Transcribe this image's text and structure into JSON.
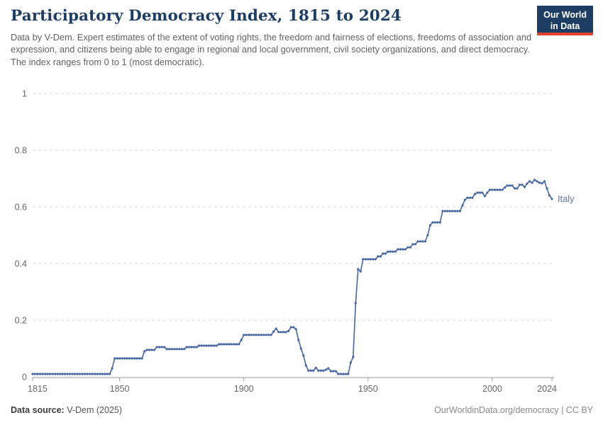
{
  "header": {
    "title": "Participatory Democracy Index, 1815 to 2024",
    "subtitle": "Data by V-Dem. Expert estimates of the extent of voting rights, the freedom and fairness of elections, freedoms of association and expression, and citizens being able to engage in regional and local government, civil society organizations, and direct democracy. The index ranges from 0 to 1 (most democratic)."
  },
  "logo": {
    "line1": "Our World",
    "line2": "in Data",
    "bg_color": "#1d3d63",
    "accent_color": "#e0432e"
  },
  "chart_data": {
    "type": "line",
    "title": "Participatory Democracy Index, 1815 to 2024",
    "xlabel": "",
    "ylabel": "",
    "xlim": [
      1815,
      2024
    ],
    "ylim": [
      0,
      1
    ],
    "x_ticks": [
      1815,
      1850,
      1900,
      1950,
      2000,
      2024
    ],
    "y_ticks": [
      0,
      0.2,
      0.4,
      0.6,
      0.8,
      1
    ],
    "grid": "dashed-horizontal",
    "legend_position": "end-of-line-label",
    "series": [
      {
        "name": "Italy",
        "color": "#4666a2",
        "label_color": "#5d7394",
        "start_year": 1815,
        "values": [
          0.01,
          0.01,
          0.01,
          0.01,
          0.01,
          0.01,
          0.01,
          0.01,
          0.01,
          0.01,
          0.01,
          0.01,
          0.01,
          0.01,
          0.01,
          0.01,
          0.01,
          0.01,
          0.01,
          0.01,
          0.01,
          0.01,
          0.01,
          0.01,
          0.01,
          0.01,
          0.01,
          0.01,
          0.01,
          0.01,
          0.01,
          0.01,
          0.03,
          0.065,
          0.065,
          0.065,
          0.065,
          0.065,
          0.065,
          0.065,
          0.065,
          0.065,
          0.065,
          0.065,
          0.065,
          0.09,
          0.095,
          0.095,
          0.095,
          0.095,
          0.105,
          0.105,
          0.105,
          0.105,
          0.098,
          0.098,
          0.098,
          0.098,
          0.098,
          0.098,
          0.098,
          0.098,
          0.105,
          0.105,
          0.105,
          0.105,
          0.105,
          0.11,
          0.11,
          0.11,
          0.11,
          0.11,
          0.11,
          0.11,
          0.11,
          0.115,
          0.115,
          0.115,
          0.115,
          0.115,
          0.115,
          0.115,
          0.115,
          0.115,
          0.13,
          0.148,
          0.148,
          0.148,
          0.148,
          0.148,
          0.148,
          0.148,
          0.148,
          0.148,
          0.148,
          0.148,
          0.148,
          0.16,
          0.17,
          0.158,
          0.158,
          0.158,
          0.158,
          0.162,
          0.175,
          0.175,
          0.168,
          0.13,
          0.1,
          0.075,
          0.04,
          0.022,
          0.022,
          0.022,
          0.032,
          0.022,
          0.022,
          0.022,
          0.025,
          0.03,
          0.02,
          0.02,
          0.02,
          0.01,
          0.01,
          0.01,
          0.01,
          0.01,
          0.05,
          0.07,
          0.26,
          0.38,
          0.372,
          0.415,
          0.415,
          0.415,
          0.415,
          0.415,
          0.415,
          0.425,
          0.425,
          0.435,
          0.435,
          0.442,
          0.442,
          0.442,
          0.442,
          0.45,
          0.45,
          0.45,
          0.45,
          0.457,
          0.457,
          0.468,
          0.468,
          0.478,
          0.478,
          0.478,
          0.478,
          0.5,
          0.535,
          0.545,
          0.545,
          0.545,
          0.545,
          0.585,
          0.585,
          0.585,
          0.585,
          0.585,
          0.585,
          0.585,
          0.585,
          0.605,
          0.625,
          0.632,
          0.632,
          0.632,
          0.645,
          0.65,
          0.65,
          0.65,
          0.638,
          0.65,
          0.66,
          0.66,
          0.66,
          0.66,
          0.66,
          0.66,
          0.668,
          0.675,
          0.675,
          0.675,
          0.665,
          0.665,
          0.678,
          0.678,
          0.67,
          0.682,
          0.69,
          0.685,
          0.695,
          0.69,
          0.685,
          0.683,
          0.69,
          0.665,
          0.64,
          0.628
        ]
      }
    ]
  },
  "footer": {
    "source_label": "Data source:",
    "source_value": " V-Dem (2025)",
    "right_text": "OurWorldinData.org/democracy | CC BY"
  }
}
